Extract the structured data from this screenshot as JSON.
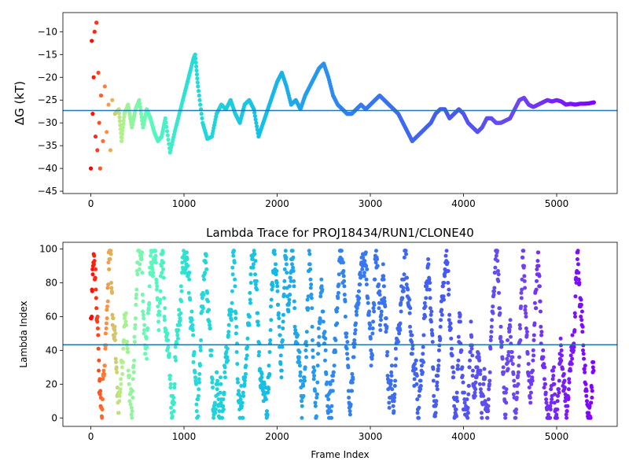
{
  "chart_data": [
    {
      "type": "scatter",
      "title": "",
      "xlabel": "",
      "ylabel": "ΔG (kT)",
      "xlim": [
        -300,
        5650
      ],
      "ylim": [
        -45.5,
        -5.8
      ],
      "xticks": [
        0,
        1000,
        2000,
        3000,
        4000,
        5000
      ],
      "yticks": [
        -45,
        -40,
        -35,
        -30,
        -25,
        -20,
        -15,
        -10
      ],
      "hline": -27.3,
      "color_scale": "rainbow (red at frame 0 to violet at last frame)",
      "trace_points": [
        [
          0,
          -40
        ],
        [
          10,
          -12
        ],
        [
          20,
          -28
        ],
        [
          30,
          -20
        ],
        [
          40,
          -10
        ],
        [
          50,
          -33
        ],
        [
          60,
          -8
        ],
        [
          70,
          -36
        ],
        [
          80,
          -19
        ],
        [
          90,
          -30
        ],
        [
          100,
          -40
        ],
        [
          110,
          -24
        ],
        [
          130,
          -34
        ],
        [
          150,
          -22
        ],
        [
          170,
          -32
        ],
        [
          190,
          -26
        ],
        [
          210,
          -36
        ],
        [
          230,
          -25
        ],
        [
          260,
          -28
        ],
        [
          300,
          -27
        ],
        [
          330,
          -34
        ],
        [
          360,
          -28
        ],
        [
          400,
          -26
        ],
        [
          440,
          -31
        ],
        [
          480,
          -27
        ],
        [
          520,
          -25
        ],
        [
          560,
          -31
        ],
        [
          600,
          -27
        ],
        [
          640,
          -29
        ],
        [
          680,
          -32
        ],
        [
          720,
          -34
        ],
        [
          760,
          -33
        ],
        [
          800,
          -29
        ],
        [
          850,
          -36.5
        ],
        [
          900,
          -32
        ],
        [
          950,
          -28
        ],
        [
          1000,
          -24
        ],
        [
          1050,
          -20
        ],
        [
          1100,
          -16
        ],
        [
          1120,
          -15
        ],
        [
          1150,
          -22
        ],
        [
          1200,
          -30
        ],
        [
          1250,
          -33.5
        ],
        [
          1300,
          -33
        ],
        [
          1350,
          -28
        ],
        [
          1400,
          -26
        ],
        [
          1450,
          -27
        ],
        [
          1500,
          -25
        ],
        [
          1550,
          -28
        ],
        [
          1600,
          -30
        ],
        [
          1650,
          -26
        ],
        [
          1700,
          -25
        ],
        [
          1750,
          -27
        ],
        [
          1800,
          -33
        ],
        [
          1850,
          -30
        ],
        [
          1900,
          -27
        ],
        [
          1950,
          -24
        ],
        [
          2000,
          -21
        ],
        [
          2050,
          -19
        ],
        [
          2100,
          -22
        ],
        [
          2150,
          -26
        ],
        [
          2200,
          -25
        ],
        [
          2250,
          -27
        ],
        [
          2300,
          -24
        ],
        [
          2350,
          -22
        ],
        [
          2400,
          -20
        ],
        [
          2450,
          -18
        ],
        [
          2500,
          -17
        ],
        [
          2550,
          -20
        ],
        [
          2600,
          -24
        ],
        [
          2650,
          -26
        ],
        [
          2700,
          -27
        ],
        [
          2750,
          -28
        ],
        [
          2800,
          -28
        ],
        [
          2850,
          -27
        ],
        [
          2900,
          -26
        ],
        [
          2950,
          -27
        ],
        [
          3000,
          -26
        ],
        [
          3050,
          -25
        ],
        [
          3100,
          -24
        ],
        [
          3150,
          -25
        ],
        [
          3200,
          -26
        ],
        [
          3250,
          -27
        ],
        [
          3300,
          -28
        ],
        [
          3350,
          -30
        ],
        [
          3400,
          -32
        ],
        [
          3450,
          -34
        ],
        [
          3500,
          -33
        ],
        [
          3550,
          -32
        ],
        [
          3600,
          -31
        ],
        [
          3650,
          -30
        ],
        [
          3700,
          -28
        ],
        [
          3750,
          -27
        ],
        [
          3800,
          -27
        ],
        [
          3850,
          -29
        ],
        [
          3900,
          -28
        ],
        [
          3950,
          -27
        ],
        [
          4000,
          -28
        ],
        [
          4050,
          -30
        ],
        [
          4100,
          -31
        ],
        [
          4150,
          -32
        ],
        [
          4200,
          -31
        ],
        [
          4250,
          -29
        ],
        [
          4300,
          -29
        ],
        [
          4350,
          -30
        ],
        [
          4400,
          -30
        ],
        [
          4450,
          -29.5
        ],
        [
          4500,
          -29
        ],
        [
          4550,
          -27
        ],
        [
          4600,
          -25
        ],
        [
          4650,
          -24.5
        ],
        [
          4700,
          -26
        ],
        [
          4750,
          -26.5
        ],
        [
          4800,
          -26
        ],
        [
          4850,
          -25.5
        ],
        [
          4900,
          -25
        ],
        [
          4950,
          -25.3
        ],
        [
          5000,
          -25
        ],
        [
          5050,
          -25.3
        ],
        [
          5100,
          -26
        ],
        [
          5150,
          -25.8
        ],
        [
          5200,
          -26
        ],
        [
          5250,
          -25.8
        ],
        [
          5300,
          -25.8
        ],
        [
          5350,
          -25.7
        ],
        [
          5400,
          -25.5
        ]
      ]
    },
    {
      "type": "scatter",
      "title": "Lambda Trace for PROJ18434/RUN1/CLONE40",
      "xlabel": "Frame Index",
      "ylabel": "Lambda Index",
      "xlim": [
        -300,
        5650
      ],
      "ylim": [
        -5,
        104
      ],
      "xticks": [
        0,
        1000,
        2000,
        3000,
        4000,
        5000
      ],
      "yticks": [
        0,
        20,
        40,
        60,
        80,
        100
      ],
      "hline": 43.3,
      "n_frames": 5400,
      "color_scale": "rainbow (red at frame 0 to violet at last frame)",
      "note_points": "Approximately 5400 frames; lambda index spans 0-99 and is visited in clustered vertical sweeps."
    }
  ]
}
